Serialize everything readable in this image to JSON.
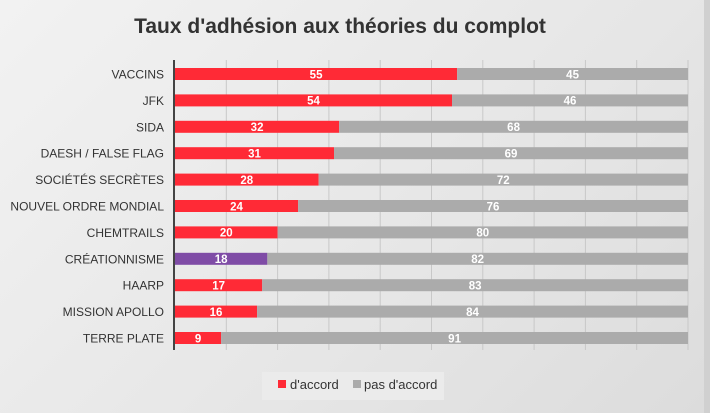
{
  "chart_data": {
    "type": "bar",
    "orientation": "horizontal",
    "stacked": true,
    "title": "Taux d'adhésion aux théories du complot",
    "categories": [
      "VACCINS",
      "JFK",
      "SIDA",
      "DAESH / FALSE FLAG",
      "SOCIÉTÉS SECRÈTES",
      "NOUVEL ORDRE MONDIAL",
      "CHEMTRAILS",
      "CRÉATIONNISME",
      "HAARP",
      "MISSION APOLLO",
      "TERRE PLATE"
    ],
    "series": [
      {
        "name": "d'accord",
        "color": "#ff2a36",
        "values": [
          55,
          54,
          32,
          31,
          28,
          24,
          20,
          18,
          17,
          16,
          9
        ]
      },
      {
        "name": "pas d'accord",
        "color": "#ababab",
        "values": [
          45,
          46,
          68,
          69,
          72,
          76,
          80,
          82,
          83,
          84,
          91
        ]
      }
    ],
    "highlight": {
      "category": "CRÉATIONNISME",
      "color": "#7f4ca6"
    },
    "xlim": [
      0,
      100
    ],
    "grid": true,
    "legend_position": "bottom"
  }
}
